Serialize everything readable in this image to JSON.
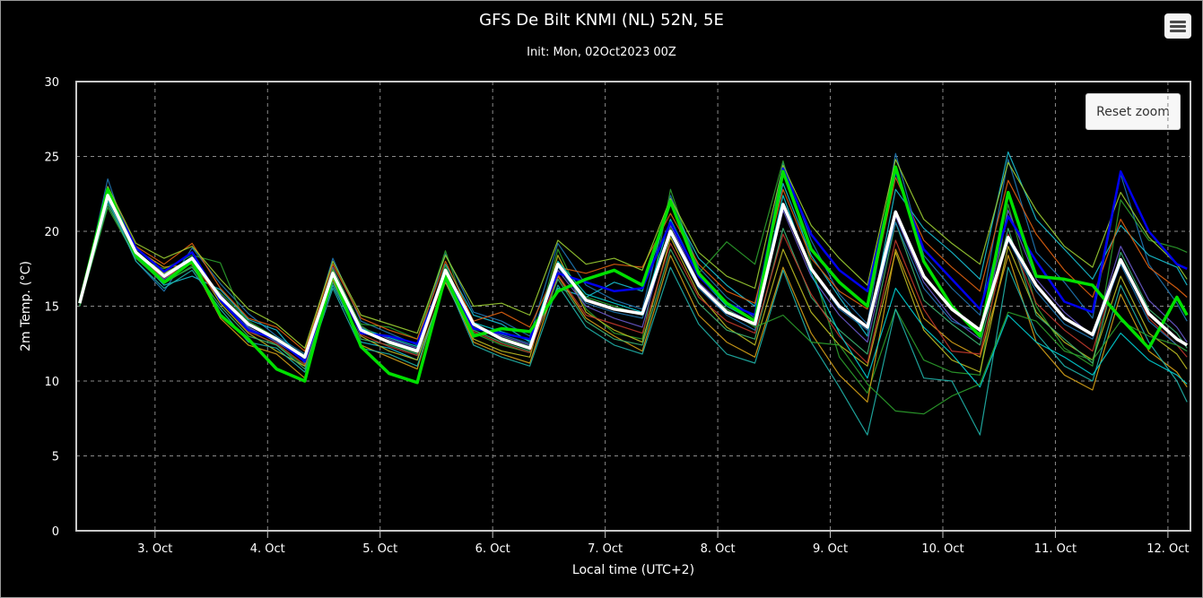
{
  "title": "GFS De Bilt KNMI (NL) 52N, 5E",
  "subtitle": "Init: Mon, 02Oct2023 00Z",
  "reset_zoom_label": "Reset zoom",
  "menu_icon": "hamburger-menu-icon",
  "colors": {
    "background": "#000000",
    "mean_line": "#ffffff",
    "control_line": "#00e000",
    "op_line": "#0000ee",
    "grid": "#8a8a8a",
    "member_palette": [
      "#1f77b4",
      "#2ca02c",
      "#17becf",
      "#bcbd22",
      "#d4a017",
      "#e06010",
      "#3cb371",
      "#6a5acd",
      "#20b2aa",
      "#9acd32",
      "#c0392b",
      "#00ced1"
    ]
  },
  "chart_data": {
    "type": "line",
    "xlabel": "Local time (UTC+2)",
    "ylabel": "2m Temp. (°C)",
    "ylim": [
      0,
      30
    ],
    "xlim": [
      2.3,
      12.2
    ],
    "yticks": [
      0,
      5,
      10,
      15,
      20,
      25,
      30
    ],
    "xticks": [
      {
        "value": 3,
        "label": "3. Oct"
      },
      {
        "value": 4,
        "label": "4. Oct"
      },
      {
        "value": 5,
        "label": "5. Oct"
      },
      {
        "value": 6,
        "label": "6. Oct"
      },
      {
        "value": 7,
        "label": "7. Oct"
      },
      {
        "value": 8,
        "label": "8. Oct"
      },
      {
        "value": 9,
        "label": "9. Oct"
      },
      {
        "value": 10,
        "label": "10. Oct"
      },
      {
        "value": 11,
        "label": "11. Oct"
      },
      {
        "value": 12,
        "label": "12. Oct"
      }
    ],
    "grid": true,
    "legend": "none",
    "x": [
      2.33,
      2.58,
      2.83,
      3.08,
      3.33,
      3.58,
      3.83,
      4.08,
      4.33,
      4.58,
      4.83,
      5.08,
      5.33,
      5.58,
      5.83,
      6.08,
      6.33,
      6.58,
      6.83,
      7.08,
      7.33,
      7.58,
      7.83,
      8.08,
      8.33,
      8.58,
      8.83,
      9.08,
      9.33,
      9.58,
      9.83,
      10.08,
      10.33,
      10.58,
      10.83,
      11.08,
      11.33,
      11.58,
      11.83,
      12.08,
      12.17
    ],
    "series": [
      {
        "role": "mean",
        "values": [
          15.2,
          22.4,
          18.6,
          17.0,
          18.2,
          15.6,
          13.8,
          12.8,
          11.6,
          17.2,
          13.4,
          12.6,
          12.0,
          17.4,
          13.8,
          12.8,
          12.2,
          17.8,
          15.4,
          14.8,
          14.5,
          20.0,
          16.4,
          14.6,
          13.8,
          21.8,
          17.5,
          15.0,
          13.6,
          21.3,
          17.0,
          14.8,
          13.4,
          19.6,
          16.4,
          14.2,
          13.1,
          18.1,
          14.5,
          12.8,
          12.4
        ]
      },
      {
        "role": "control",
        "values": [
          15.2,
          22.8,
          18.4,
          16.6,
          18.0,
          14.4,
          12.8,
          10.8,
          10.0,
          17.2,
          12.3,
          10.5,
          9.9,
          17.0,
          13.0,
          13.5,
          13.3,
          16.0,
          16.8,
          17.4,
          16.4,
          22.0,
          17.2,
          15.2,
          14.0,
          24.0,
          18.8,
          16.6,
          15.0,
          24.3,
          18.0,
          15.0,
          13.0,
          22.6,
          17.0,
          16.8,
          16.4,
          14.2,
          12.2,
          15.6,
          14.4
        ]
      },
      {
        "role": "operational",
        "values": [
          15.2,
          22.7,
          18.9,
          17.3,
          18.6,
          15.4,
          13.4,
          12.8,
          11.3,
          17.1,
          13.2,
          13.0,
          12.5,
          17.3,
          13.5,
          13.2,
          12.8,
          17.2,
          16.6,
          16.0,
          16.2,
          20.6,
          17.0,
          15.2,
          14.4,
          24.2,
          19.8,
          17.4,
          16.0,
          24.0,
          18.8,
          16.8,
          14.8,
          21.0,
          18.0,
          15.3,
          14.6,
          24.0,
          20.0,
          17.8,
          17.5
        ]
      },
      {
        "role": "member",
        "values": [
          15.0,
          23.5,
          18.0,
          16.0,
          18.9,
          16.5,
          14.5,
          13.0,
          11.8,
          18.2,
          14.0,
          13.2,
          12.4,
          18.5,
          14.6,
          14.0,
          13.0,
          19.2,
          16.4,
          15.4,
          14.8,
          22.4,
          17.6,
          15.6,
          14.2,
          24.6,
          19.4,
          15.8,
          13.8,
          25.2,
          18.4,
          16.2,
          14.4,
          24.8,
          18.6,
          16.6,
          14.2,
          23.8,
          17.8,
          15.2,
          14.0
        ]
      },
      {
        "role": "member",
        "values": [
          15.0,
          21.6,
          18.2,
          17.5,
          18.4,
          17.9,
          13.4,
          12.4,
          11.0,
          16.8,
          13.8,
          13.6,
          12.8,
          18.7,
          13.2,
          12.4,
          11.9,
          18.8,
          14.8,
          13.2,
          12.8,
          22.8,
          17.2,
          19.3,
          17.8,
          24.7,
          17.8,
          11.6,
          9.2,
          14.8,
          11.4,
          10.6,
          10.4,
          21.8,
          15.0,
          12.2,
          11.0,
          22.1,
          19.4,
          18.9,
          18.6
        ]
      },
      {
        "role": "member",
        "values": [
          15.0,
          22.0,
          18.4,
          16.4,
          17.0,
          16.1,
          14.1,
          13.4,
          11.2,
          16.4,
          12.6,
          12.2,
          11.4,
          17.8,
          14.4,
          13.8,
          12.6,
          16.2,
          15.6,
          16.6,
          16.0,
          21.8,
          18.2,
          16.4,
          15.0,
          23.2,
          18.4,
          15.6,
          13.0,
          22.8,
          20.2,
          18.6,
          16.8,
          25.3,
          20.8,
          18.8,
          16.8,
          20.4,
          18.4,
          17.6,
          16.4
        ]
      },
      {
        "role": "member",
        "values": [
          15.0,
          22.6,
          18.6,
          17.2,
          18.2,
          15.2,
          13.2,
          12.0,
          11.0,
          17.4,
          13.0,
          12.0,
          11.4,
          16.6,
          12.8,
          12.0,
          11.6,
          18.4,
          14.6,
          13.4,
          12.6,
          19.6,
          15.8,
          13.6,
          12.4,
          18.8,
          14.6,
          12.4,
          11.0,
          18.6,
          13.4,
          11.4,
          10.6,
          19.0,
          14.6,
          12.6,
          11.4,
          17.0,
          13.2,
          11.8,
          10.8
        ]
      },
      {
        "role": "member",
        "values": [
          15.0,
          22.2,
          18.8,
          17.6,
          17.8,
          14.2,
          12.4,
          11.8,
          10.2,
          16.8,
          12.4,
          11.6,
          10.8,
          17.0,
          12.6,
          11.8,
          11.2,
          17.0,
          14.2,
          13.0,
          12.0,
          18.4,
          14.4,
          12.6,
          11.6,
          17.6,
          13.2,
          10.4,
          8.6,
          18.8,
          14.2,
          12.6,
          11.6,
          18.4,
          12.6,
          10.4,
          9.4,
          15.8,
          12.0,
          10.6,
          9.6
        ]
      },
      {
        "role": "member",
        "values": [
          15.0,
          22.9,
          19.0,
          17.8,
          19.2,
          16.2,
          14.2,
          13.6,
          12.0,
          17.8,
          14.2,
          13.4,
          12.8,
          18.0,
          14.0,
          14.6,
          13.6,
          17.6,
          17.2,
          17.8,
          17.6,
          21.2,
          17.8,
          16.0,
          15.2,
          22.8,
          18.2,
          16.0,
          14.8,
          23.6,
          19.4,
          17.6,
          16.0,
          23.4,
          19.8,
          17.4,
          15.6,
          20.8,
          17.6,
          16.2,
          15.6
        ]
      },
      {
        "role": "member",
        "values": [
          15.0,
          21.8,
          18.2,
          16.6,
          17.6,
          15.0,
          13.0,
          12.4,
          10.8,
          16.6,
          12.8,
          12.4,
          11.8,
          17.2,
          13.4,
          12.6,
          12.0,
          16.8,
          14.0,
          12.8,
          12.4,
          18.8,
          15.2,
          13.4,
          12.8,
          20.2,
          15.6,
          13.4,
          11.8,
          20.6,
          15.4,
          13.8,
          12.4,
          20.2,
          14.4,
          12.8,
          11.2,
          18.6,
          14.8,
          13.2,
          12.2
        ]
      },
      {
        "role": "member",
        "values": [
          15.0,
          22.5,
          18.4,
          16.8,
          18.0,
          15.8,
          13.6,
          12.6,
          11.4,
          17.6,
          13.6,
          12.8,
          12.2,
          17.4,
          13.8,
          13.0,
          12.4,
          17.4,
          15.0,
          14.2,
          13.6,
          20.4,
          16.6,
          14.8,
          13.8,
          21.4,
          17.0,
          14.4,
          12.6,
          21.0,
          16.6,
          14.2,
          12.8,
          21.4,
          16.8,
          14.6,
          13.0,
          19.0,
          15.4,
          13.6,
          12.6
        ]
      },
      {
        "role": "member",
        "values": [
          15.0,
          22.1,
          18.0,
          16.2,
          17.4,
          14.8,
          12.6,
          12.2,
          10.6,
          16.2,
          12.2,
          11.8,
          11.0,
          16.8,
          12.4,
          11.6,
          11.0,
          16.4,
          13.6,
          12.4,
          11.8,
          17.6,
          13.8,
          11.8,
          11.2,
          17.4,
          12.6,
          9.6,
          6.4,
          14.8,
          10.2,
          10.0,
          6.4,
          17.6,
          13.2,
          11.0,
          10.0,
          16.4,
          12.6,
          10.0,
          8.6
        ]
      },
      {
        "role": "member",
        "values": [
          15.0,
          23.0,
          19.2,
          18.2,
          19.0,
          16.8,
          14.8,
          13.8,
          12.2,
          18.0,
          14.4,
          13.8,
          13.2,
          18.4,
          15.0,
          15.2,
          14.4,
          19.4,
          17.8,
          18.2,
          17.4,
          22.2,
          18.6,
          17.0,
          16.2,
          24.4,
          20.4,
          18.2,
          16.4,
          24.8,
          20.8,
          19.2,
          17.8,
          24.6,
          21.4,
          19.0,
          17.6,
          22.6,
          19.6,
          17.8,
          16.8
        ]
      },
      {
        "role": "member",
        "values": [
          15.0,
          22.3,
          18.3,
          16.9,
          17.9,
          15.4,
          13.3,
          12.5,
          11.1,
          17.0,
          13.1,
          12.3,
          11.7,
          17.1,
          13.3,
          12.5,
          11.9,
          17.1,
          14.4,
          13.8,
          13.2,
          19.2,
          15.6,
          14.0,
          13.2,
          19.8,
          15.8,
          13.0,
          11.2,
          19.4,
          14.8,
          12.0,
          11.8,
          19.8,
          15.2,
          13.4,
          12.0,
          18.2,
          14.2,
          12.4,
          11.6
        ]
      },
      {
        "role": "member",
        "values": [
          15.0,
          22.7,
          18.7,
          17.1,
          18.3,
          15.6,
          13.7,
          12.9,
          11.5,
          17.3,
          13.5,
          12.9,
          12.3,
          17.5,
          13.9,
          13.3,
          12.7,
          18.0,
          15.8,
          15.2,
          14.6,
          20.8,
          17.0,
          15.0,
          14.0,
          22.4,
          17.2,
          13.2,
          10.2,
          16.2,
          13.6,
          11.8,
          9.6,
          14.4,
          12.6,
          11.6,
          10.4,
          13.2,
          11.4,
          10.4,
          9.8
        ]
      },
      {
        "role": "member",
        "values": [
          15.0,
          22.4,
          18.5,
          17.0,
          18.1,
          15.5,
          13.5,
          12.7,
          11.3,
          17.1,
          13.3,
          12.7,
          12.1,
          17.3,
          13.7,
          13.1,
          12.5,
          17.6,
          15.2,
          14.6,
          14.2,
          19.8,
          16.2,
          14.4,
          13.4,
          21.6,
          17.4,
          14.8,
          13.4,
          20.6,
          16.2,
          14.0,
          13.2,
          19.4,
          16.0,
          13.8,
          12.8,
          17.8,
          14.0,
          12.4,
          12.0
        ]
      },
      {
        "role": "member",
        "values": [
          15.0,
          22.5,
          18.2,
          16.5,
          17.7,
          15.9,
          14.0,
          12.9,
          11.7,
          17.5,
          13.7,
          12.5,
          11.9,
          17.7,
          13.6,
          12.9,
          12.3,
          17.9,
          15.6,
          15.0,
          14.4,
          20.2,
          16.4,
          14.8,
          13.6,
          14.4,
          12.6,
          12.4,
          9.8,
          8.0,
          7.8,
          9.0,
          9.8,
          14.6,
          14.0,
          12.0,
          11.4,
          14.0,
          13.0,
          12.4,
          12.0
        ]
      }
    ]
  }
}
